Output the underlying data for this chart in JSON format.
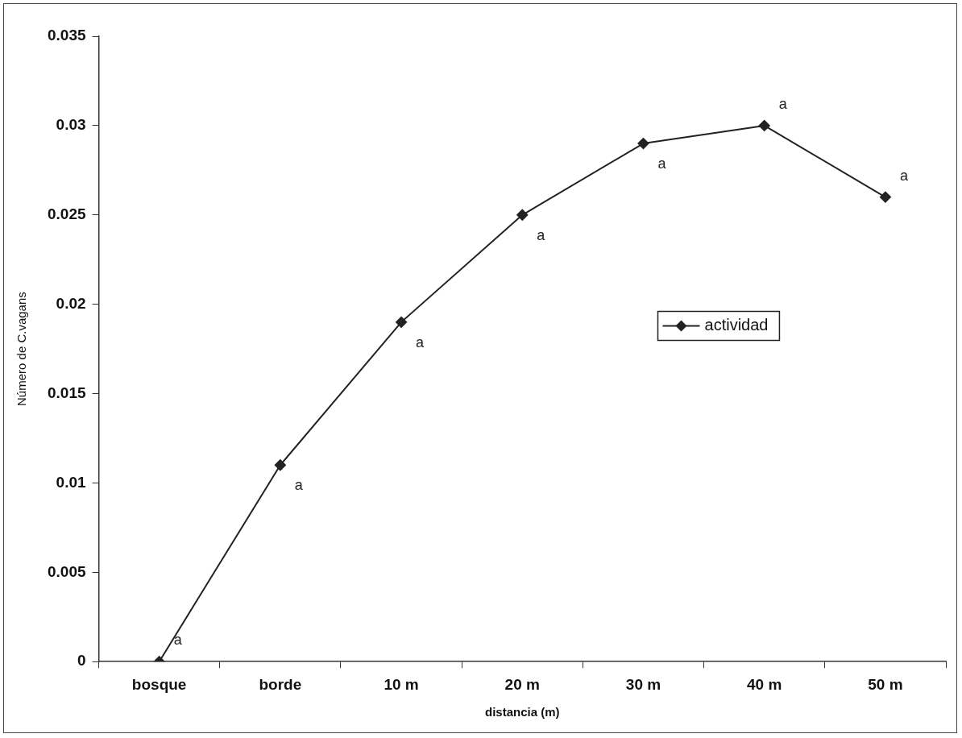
{
  "chart_data": {
    "type": "line",
    "xlabel": "distancia (m)",
    "ylabel": "Número de C.vagans",
    "categories": [
      "bosque",
      "borde",
      "10 m",
      "20 m",
      "30 m",
      "40 m",
      "50 m"
    ],
    "series": [
      {
        "name": "actividad",
        "color": "#222222",
        "values": [
          0,
          0.011,
          0.019,
          0.025,
          0.029,
          0.03,
          0.026
        ]
      }
    ],
    "ylim": [
      0,
      0.035
    ],
    "yticks": [
      0,
      0.005,
      0.01,
      0.015,
      0.02,
      0.025,
      0.03,
      0.035
    ],
    "grid": false,
    "legend": "right",
    "marker": "diamond",
    "line_style": "solid",
    "annotations": [
      {
        "text": "a",
        "x": "bosque",
        "y": 0
      },
      {
        "text": "a",
        "x": "borde",
        "y": 0.011
      },
      {
        "text": "a",
        "x": "10 m",
        "y": 0.019
      },
      {
        "text": "a",
        "x": "20 m",
        "y": 0.025
      },
      {
        "text": "a",
        "x": "30 m",
        "y": 0.029
      },
      {
        "text": "a",
        "x": "40 m",
        "y": 0.03
      },
      {
        "text": "a",
        "x": "50 m",
        "y": 0.026
      }
    ]
  }
}
